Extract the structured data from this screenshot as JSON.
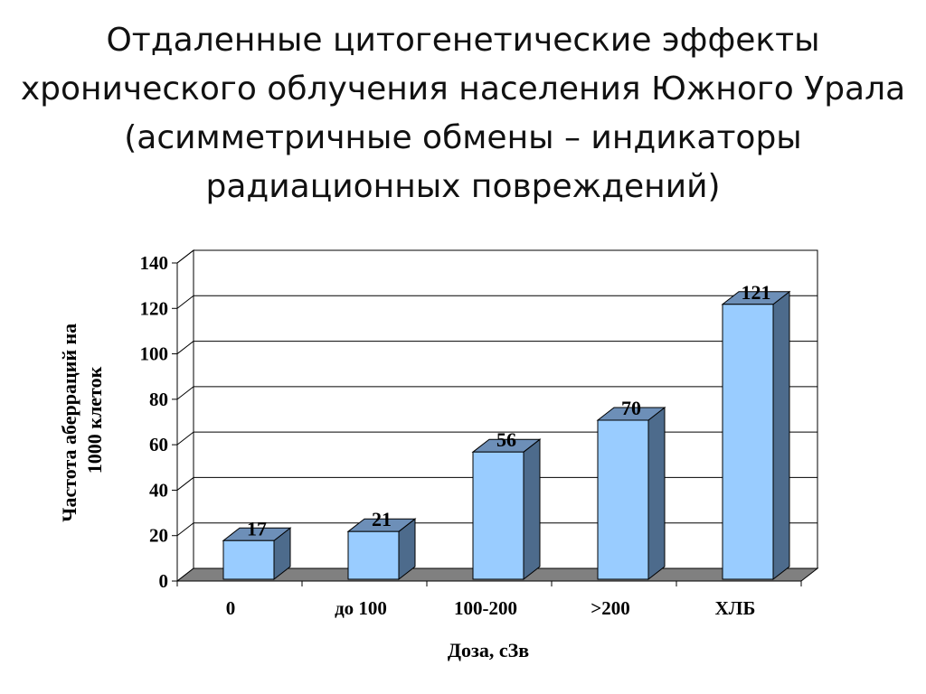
{
  "title_lines": [
    "Отдаленные цитогенетические эффекты",
    "хронического облучения населения Южного Урала",
    "(асимметричные обмены – индикаторы",
    "радиационных повреждений)"
  ],
  "chart_data": {
    "type": "bar",
    "title": "",
    "xlabel": "Доза, сЗв",
    "ylabel_lines": [
      "Частота аберраций на",
      "1000 клеток"
    ],
    "categories": [
      "0",
      "до 100",
      "100-200",
      ">200",
      "ХЛБ"
    ],
    "values": [
      17,
      21,
      56,
      70,
      121
    ],
    "ylim": [
      0,
      140
    ],
    "yticks": [
      "0",
      "20",
      "40",
      "60",
      "80",
      "100",
      "120",
      "140"
    ],
    "grid": true,
    "bar_face_color": "#99CCFF",
    "bar_side_color": "#4D6B8C",
    "bar_top_color": "#6D8FB8",
    "floor_color": "#808080"
  }
}
